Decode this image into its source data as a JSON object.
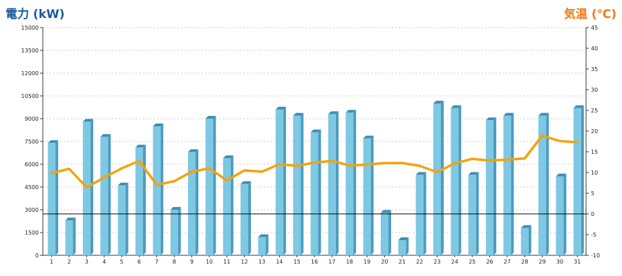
{
  "chart_data": {
    "type": "bar+line",
    "left_axis": {
      "label": "電力 (kW)",
      "min": 0,
      "max": 15000,
      "ticks": [
        0,
        1500,
        3000,
        4500,
        6000,
        7500,
        9000,
        10500,
        12000,
        13500,
        15000
      ],
      "color": "#1a5aa0"
    },
    "right_axis": {
      "label": "気温 (℃)",
      "min": -10,
      "max": 45,
      "ticks": [
        -10,
        -5,
        0,
        5,
        10,
        15,
        20,
        25,
        30,
        35,
        40,
        45
      ],
      "color": "#f07818"
    },
    "categories": [
      "1",
      "2",
      "3",
      "4",
      "5",
      "6",
      "7",
      "8",
      "9",
      "10",
      "11",
      "12",
      "13",
      "14",
      "15",
      "16",
      "17",
      "18",
      "19",
      "20",
      "21",
      "22",
      "23",
      "24",
      "25",
      "26",
      "27",
      "28",
      "29",
      "30",
      "31"
    ],
    "series": [
      {
        "kind": "bar",
        "axis": "left",
        "color": "#7ec8e3",
        "values": [
          7400,
          2300,
          8800,
          7800,
          4600,
          7100,
          8500,
          3000,
          6800,
          9000,
          6400,
          4700,
          1200,
          9600,
          9200,
          8100,
          9300,
          9400,
          7700,
          2800,
          1000,
          5300,
          10000,
          9700,
          5300,
          8900,
          9200,
          1800,
          9200,
          5200,
          9700
        ]
      },
      {
        "kind": "line",
        "axis": "right",
        "color": "#f5a20a",
        "values": [
          9.8,
          10.9,
          6.4,
          8.8,
          11.0,
          12.8,
          7.0,
          7.9,
          10.2,
          11.0,
          8.1,
          10.5,
          10.2,
          12.0,
          11.6,
          12.4,
          12.8,
          11.7,
          11.9,
          12.3,
          12.3,
          11.6,
          10.1,
          12.2,
          13.3,
          12.9,
          13.1,
          13.4,
          18.9,
          17.6,
          17.3
        ]
      }
    ],
    "reference_line": {
      "axis": "right",
      "value": 0,
      "color": "#000000"
    },
    "grid": true
  }
}
